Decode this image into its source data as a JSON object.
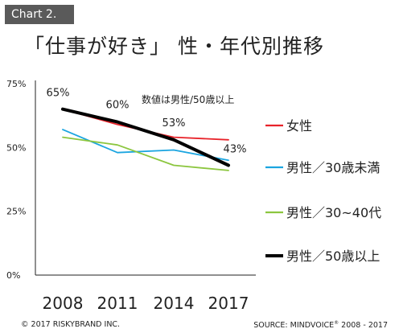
{
  "badge": "Chart 2.",
  "footer": {
    "copyright": "© 2017 RISKYBRAND INC.",
    "source_prefix": "SOURCE: MINDVOICE",
    "source_mark": "®",
    "source_suffix": " 2008 - 2017"
  },
  "chart_data": {
    "type": "line",
    "title": "「仕事が好き」 性・年代別推移",
    "annotation": "数値は男性/50歳以上",
    "categories": [
      "2008",
      "2011",
      "2014",
      "2017"
    ],
    "y_ticks": [
      "0%",
      "25%",
      "50%",
      "75%"
    ],
    "ylim": [
      0,
      75
    ],
    "grid": false,
    "legend_position": "right",
    "series": [
      {
        "name": "女性",
        "color": "#e8232a",
        "width": 1.8,
        "values": [
          65,
          59,
          54,
          53
        ]
      },
      {
        "name": "男性／30歳未満",
        "color": "#1ba5e0",
        "width": 1.8,
        "values": [
          57,
          48,
          49,
          45
        ]
      },
      {
        "name": "男性／30~40代",
        "color": "#8cc63f",
        "width": 1.8,
        "values": [
          54,
          51,
          43,
          41
        ]
      },
      {
        "name": "男性／50歳以上",
        "color": "#000000",
        "width": 4,
        "values": [
          65,
          60,
          53,
          43
        ]
      }
    ],
    "data_labels": [
      "65%",
      "60%",
      "53%",
      "43%"
    ]
  }
}
